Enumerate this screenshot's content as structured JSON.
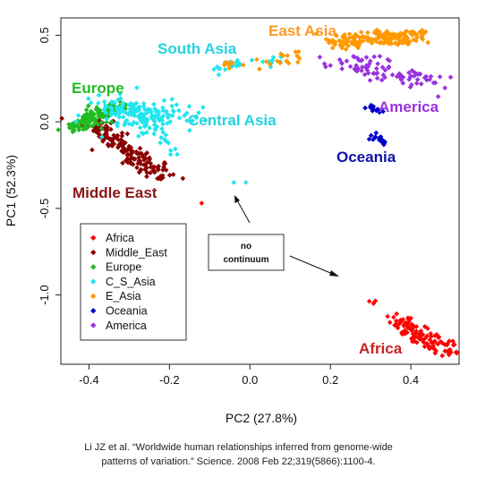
{
  "chart_data": {
    "type": "scatter",
    "title": "",
    "xlabel": "PC2 (27.8%)",
    "ylabel": "PC1 (52.3%)",
    "xlim": [
      -0.47,
      0.52
    ],
    "ylim": [
      -1.4,
      0.6
    ],
    "x_ticks": [
      -0.4,
      -0.2,
      0.0,
      0.2,
      0.4
    ],
    "x_tick_labels": [
      "-0.4",
      "-0.2",
      "0.0",
      "0.2",
      "0.4"
    ],
    "y_ticks": [
      0.5,
      0.0,
      -0.5,
      -1.0
    ],
    "y_tick_labels": [
      "0.5",
      "0.0",
      "-0.5",
      "-1.0"
    ],
    "grid": false,
    "legend_position": "bottom-left",
    "series": [
      {
        "name": "Africa",
        "color": "#ff0000",
        "label_color": "#cc2222",
        "label": "Africa",
        "clusters": [
          {
            "x0": 0.29,
            "y0": -1.01,
            "x1": 0.31,
            "y1": -1.05,
            "n": 3,
            "spread": 0.006
          },
          {
            "x0": 0.35,
            "y0": -1.12,
            "x1": 0.5,
            "y1": -1.34,
            "n": 110,
            "spread": 0.02
          },
          {
            "x0": -0.12,
            "y0": -0.47,
            "x1": -0.12,
            "y1": -0.47,
            "n": 1,
            "spread": 0.0
          }
        ]
      },
      {
        "name": "Middle_East",
        "color": "#8b0000",
        "label_color": "#8b1414",
        "label": "Middle East",
        "clusters": [
          {
            "x0": -0.4,
            "y0": 0.0,
            "x1": -0.21,
            "y1": -0.33,
            "n": 160,
            "spread": 0.02
          }
        ]
      },
      {
        "name": "Europe",
        "color": "#22bb22",
        "label_color": "#22bb22",
        "label": "Europe",
        "clusters": [
          {
            "x0": -0.44,
            "y0": -0.04,
            "x1": -0.33,
            "y1": 0.1,
            "n": 140,
            "spread": 0.018
          }
        ]
      },
      {
        "name": "C_S_Asia",
        "color": "#22e5ee",
        "label_color": "#22d4e0",
        "label": "Central Asia",
        "label2": "South Asia",
        "clusters": [
          {
            "x0": -0.36,
            "y0": 0.08,
            "x1": -0.2,
            "y1": 0.02,
            "n": 170,
            "spread": 0.045
          },
          {
            "x0": -0.22,
            "y0": -0.08,
            "x1": -0.17,
            "y1": -0.2,
            "n": 10,
            "spread": 0.015
          },
          {
            "x0": -0.09,
            "y0": 0.3,
            "x1": 0.07,
            "y1": 0.36,
            "n": 25,
            "spread": 0.015
          },
          {
            "x0": -0.04,
            "y0": -0.35,
            "x1": -0.03,
            "y1": -0.35,
            "n": 1,
            "spread": 0.0
          },
          {
            "x0": -0.01,
            "y0": -0.35,
            "x1": -0.01,
            "y1": -0.35,
            "n": 1,
            "spread": 0.0
          }
        ]
      },
      {
        "name": "E_Asia",
        "color": "#ff9900",
        "label_color": "#ff9922",
        "label": "East Asia",
        "clusters": [
          {
            "x0": 0.21,
            "y0": 0.46,
            "x1": 0.43,
            "y1": 0.5,
            "n": 180,
            "spread": 0.022
          },
          {
            "x0": -0.08,
            "y0": 0.32,
            "x1": 0.12,
            "y1": 0.36,
            "n": 18,
            "spread": 0.012
          },
          {
            "x0": 0.08,
            "y0": 0.38,
            "x1": 0.15,
            "y1": 0.44,
            "n": 6,
            "spread": 0.01
          }
        ]
      },
      {
        "name": "Oceania",
        "color": "#0000cc",
        "label_color": "#1111aa",
        "label": "Oceania",
        "clusters": [
          {
            "x0": 0.3,
            "y0": 0.09,
            "x1": 0.32,
            "y1": 0.06,
            "n": 16,
            "spread": 0.008
          },
          {
            "x0": 0.31,
            "y0": -0.08,
            "x1": 0.33,
            "y1": -0.12,
            "n": 16,
            "spread": 0.008
          }
        ]
      },
      {
        "name": "America",
        "color": "#9933dd",
        "label_color": "#9933dd",
        "label": "America",
        "clusters": [
          {
            "x0": 0.22,
            "y0": 0.36,
            "x1": 0.46,
            "y1": 0.22,
            "n": 90,
            "spread": 0.03
          }
        ]
      }
    ],
    "annotations": [
      {
        "text": "no continuum"
      }
    ]
  },
  "caption": {
    "line1": "Li JZ et al. “Worldwide human relationships inferred from genome-wide",
    "line2": "patterns of variation.” Science. 2008 Feb 22;319(5866):1100-4."
  }
}
